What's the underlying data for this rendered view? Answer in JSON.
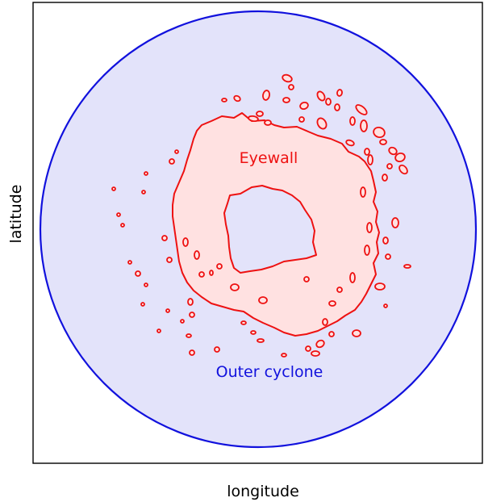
{
  "axes": {
    "xlabel": "longitude",
    "ylabel": "latitude"
  },
  "regions": {
    "outer": {
      "label": "Outer cyclone",
      "edge_color": "#1111dd",
      "fill_color": "#e3e3fa"
    },
    "eyewall": {
      "label": "Eyewall",
      "edge_color": "#ee1111",
      "fill_color": "#ffe1e1"
    },
    "eye": {
      "fill_color": "#ffffff"
    }
  }
}
